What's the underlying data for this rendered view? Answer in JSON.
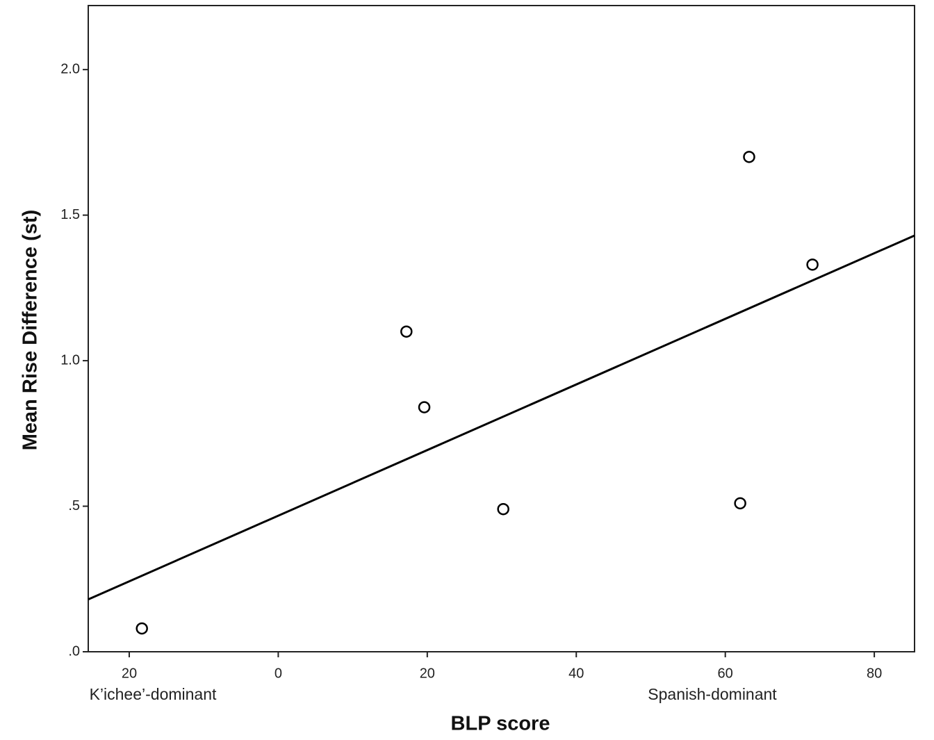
{
  "chart_data": {
    "type": "scatter",
    "x_label": "BLP score",
    "y_label": "Mean Rise Difference (st)",
    "annotations": [
      "K’ichee’-dominant",
      "Spanish-dominant"
    ],
    "x": [
      -18.3,
      17.2,
      19.6,
      30.2,
      62.0,
      63.2,
      71.7
    ],
    "values": [
      0.08,
      1.1,
      0.84,
      0.49,
      0.51,
      1.7,
      1.33
    ],
    "marker_color": "#000000",
    "trend_line": {
      "x": [
        -25.5,
        85.4
      ],
      "y": [
        0.18,
        1.43
      ],
      "color": "#000000"
    },
    "xlim": [
      -25.5,
      85.4
    ],
    "ylim": [
      0,
      2.22
    ],
    "xticks": [
      {
        "value": -20,
        "label": "20"
      },
      0,
      20,
      40,
      60,
      80
    ],
    "yticks": [
      {
        "value": 0,
        "label": ".0"
      },
      {
        "value": 0.5,
        "label": ".5"
      },
      {
        "value": 1,
        "label": "1.0"
      },
      {
        "value": 1.5,
        "label": "1.5"
      },
      {
        "value": 2,
        "label": "2.0"
      }
    ],
    "grid": false
  }
}
